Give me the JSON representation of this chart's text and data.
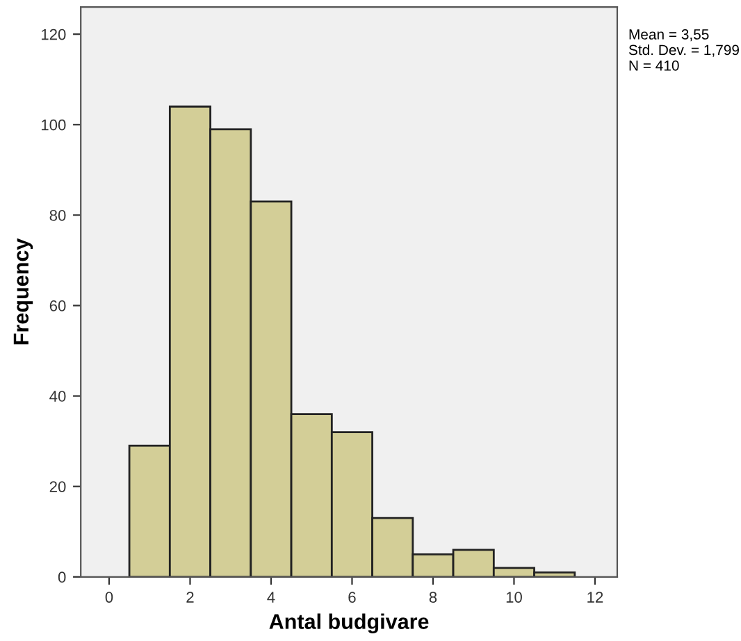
{
  "chart_data": {
    "type": "histogram",
    "xlabel": "Antal budgivare",
    "ylabel": "Frequency",
    "bins": [
      0.5,
      1.5,
      2.5,
      3.5,
      4.5,
      5.5,
      6.5,
      7.5,
      8.5,
      9.5,
      10.5,
      11.5
    ],
    "values": [
      29,
      104,
      99,
      83,
      36,
      32,
      13,
      5,
      6,
      2,
      1
    ],
    "color": "#d3ce97",
    "xlim": [
      -0.7,
      12.55
    ],
    "xticks": [
      0,
      2,
      4,
      6,
      8,
      10,
      12
    ],
    "ylim": [
      0,
      126
    ],
    "yticks": [
      0,
      20,
      40,
      60,
      80,
      100,
      120
    ],
    "grid": false,
    "legend": false,
    "annotations": [
      "Mean = 3,55\nStd. Dev. = 1,799\nN = 410"
    ]
  }
}
